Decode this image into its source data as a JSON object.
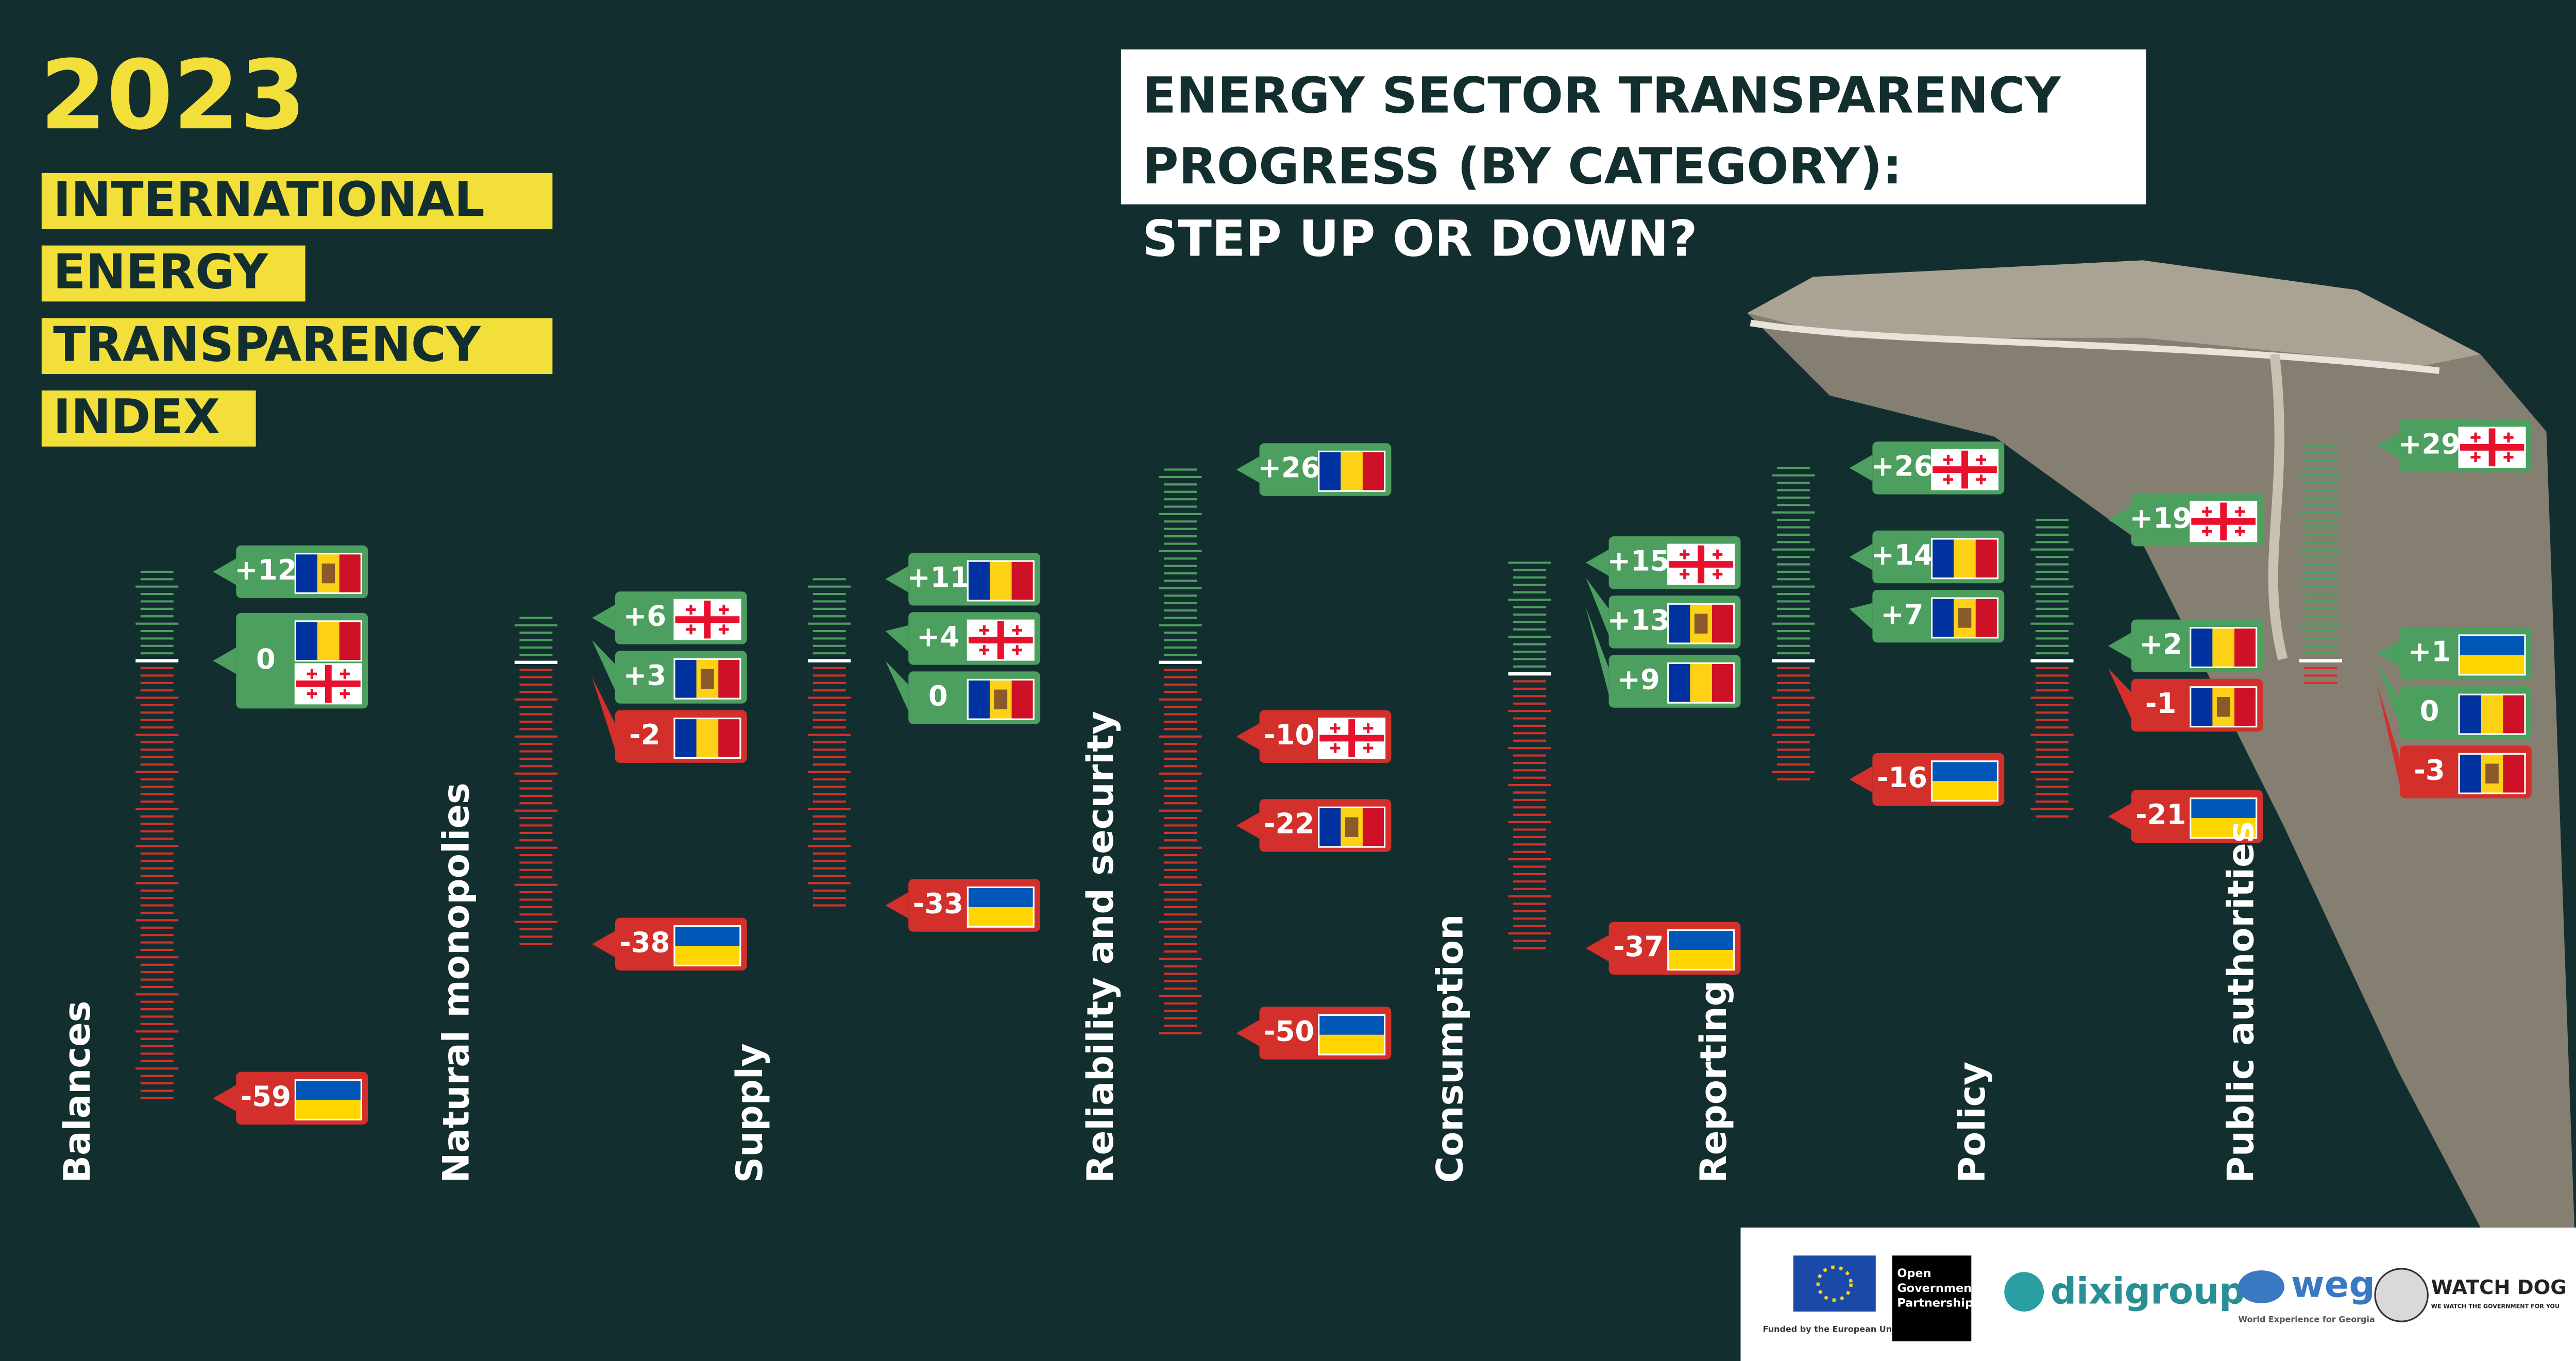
{
  "header": {
    "year": "2023",
    "index_title": [
      "INTERNATIONAL",
      "ENERGY",
      "TRANSPARENCY",
      "INDEX"
    ]
  },
  "chart_data": {
    "type": "ladder",
    "title": [
      "ENERGY SECTOR TRANSPARENCY",
      "PROGRESS (BY CATEGORY):"
    ],
    "subtitle": "STEP UP OR DOWN?",
    "categories": [
      "Balances",
      "Natural monopolies",
      "Supply",
      "Reliability and security",
      "Consumption",
      "Reporting",
      "Policy",
      "Public authorities"
    ],
    "up_color": "#4c9f5f",
    "down_color": "#d3302b",
    "series": [
      {
        "flag": "ro",
        "values": [
          0,
          -2,
          11,
          26,
          9,
          14,
          2,
          0
        ],
        "value_labels": [
          "0",
          "-2",
          "+11",
          "+26",
          "+9",
          "+14",
          "+2",
          "0"
        ]
      },
      {
        "flag": "ge",
        "values": [
          0,
          6,
          4,
          -10,
          15,
          26,
          19,
          29
        ],
        "value_labels": [
          null,
          "+6",
          "+4",
          "-10",
          "+15",
          "+26",
          "+19",
          "+29"
        ]
      },
      {
        "flag": "md",
        "values": [
          12,
          3,
          0,
          -22,
          13,
          7,
          -1,
          -3
        ],
        "value_labels": [
          "+12",
          "+3",
          "0",
          "-22",
          "+13",
          "+7",
          "-1",
          "-3"
        ]
      },
      {
        "flag": "ua",
        "values": [
          -59,
          -38,
          -33,
          -50,
          -37,
          -16,
          -21,
          1
        ],
        "value_labels": [
          "-59",
          "-38",
          "-33",
          "-50",
          "-37",
          "-16",
          "-21",
          "+1"
        ]
      }
    ]
  },
  "footer": {
    "eu": "Funded by the European Union",
    "ogp": [
      "Open",
      "Government",
      "Partnership"
    ],
    "dixi": "dixigroup",
    "weg": "weg",
    "weg_caption": "World Experience for Georgia",
    "watchdog": "WATCH DOG",
    "watchdog_caption": "WE WATCH THE GOVERNMENT FOR YOU"
  }
}
